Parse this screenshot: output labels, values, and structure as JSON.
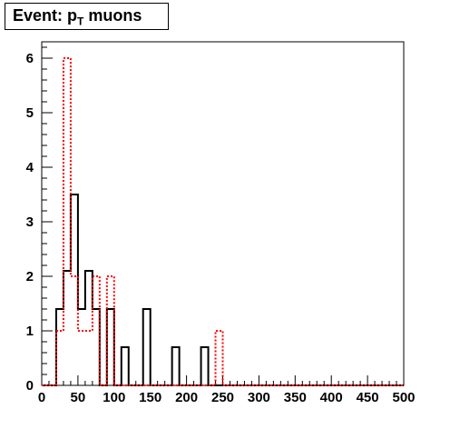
{
  "title": {
    "main": "Event: p",
    "sub": "T",
    "rest": " muons"
  },
  "chart_data": {
    "type": "histogram",
    "title": "Event: p_T muons",
    "xlabel": "",
    "ylabel": "",
    "xlim": [
      0,
      500
    ],
    "ylim": [
      0,
      6.3
    ],
    "xticks": [
      0,
      50,
      100,
      150,
      200,
      250,
      300,
      350,
      400,
      450,
      500
    ],
    "yticks": [
      0,
      1,
      2,
      3,
      4,
      5,
      6
    ],
    "bin_width": 10,
    "grid": false,
    "legend": "none",
    "series": [
      {
        "color": "#000000",
        "style": "solid",
        "bins": [
          {
            "x0": 20,
            "value": 1.4
          },
          {
            "x0": 30,
            "value": 2.1
          },
          {
            "x0": 40,
            "value": 3.5
          },
          {
            "x0": 50,
            "value": 1.4
          },
          {
            "x0": 60,
            "value": 2.1
          },
          {
            "x0": 70,
            "value": 1.4
          },
          {
            "x0": 90,
            "value": 1.4
          },
          {
            "x0": 110,
            "value": 0.7
          },
          {
            "x0": 140,
            "value": 1.4
          },
          {
            "x0": 180,
            "value": 0.7
          },
          {
            "x0": 220,
            "value": 0.7
          }
        ]
      },
      {
        "color": "#ff0000",
        "style": "dotted",
        "bins": [
          {
            "x0": 20,
            "value": 1.0
          },
          {
            "x0": 30,
            "value": 6.0
          },
          {
            "x0": 40,
            "value": 2.0
          },
          {
            "x0": 50,
            "value": 1.0
          },
          {
            "x0": 60,
            "value": 1.0
          },
          {
            "x0": 70,
            "value": 2.0
          },
          {
            "x0": 90,
            "value": 2.0
          },
          {
            "x0": 240,
            "value": 1.0
          }
        ]
      }
    ]
  }
}
